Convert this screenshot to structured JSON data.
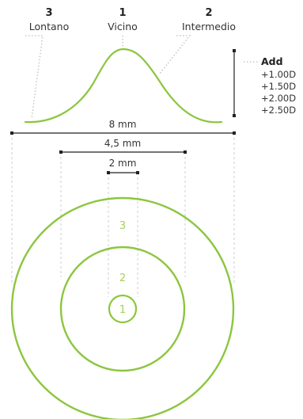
{
  "zones": [
    {
      "number": "3",
      "label": "Lontano"
    },
    {
      "number": "1",
      "label": "Vicino"
    },
    {
      "number": "2",
      "label": "Intermedio"
    }
  ],
  "add": {
    "title": "Add",
    "values": [
      "+1.00D",
      "+1.50D",
      "+2.00D",
      "+2.50D"
    ]
  },
  "dimensions": [
    "8 mm",
    "4,5 mm",
    "2 mm"
  ],
  "rings": [
    "3",
    "2",
    "1"
  ],
  "colors": {
    "accent_green": "#8cc63f",
    "ring_label_green": "#a9cf5a",
    "line_dark": "#222222",
    "guide_gray": "#cfcfcf"
  }
}
